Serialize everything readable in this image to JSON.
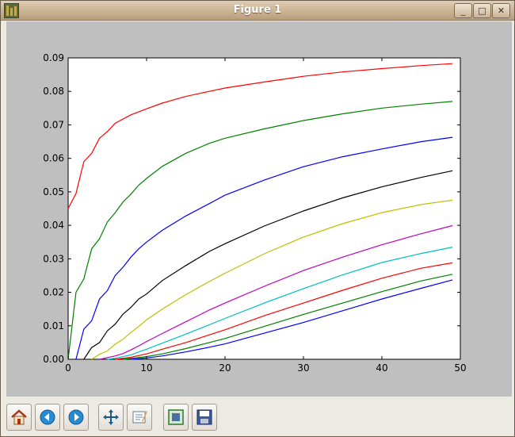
{
  "window": {
    "title": "Figure 1",
    "buttons": {
      "minimize": "_",
      "maximize": "□",
      "close": "✕"
    }
  },
  "toolbar": {
    "buttons": [
      {
        "name": "home-button",
        "icon": "home-icon"
      },
      {
        "name": "back-button",
        "icon": "arrow-left-icon"
      },
      {
        "name": "forward-button",
        "icon": "arrow-right-icon"
      },
      {
        "name": "pan-button",
        "icon": "move-arrows-icon"
      },
      {
        "name": "zoom-button",
        "icon": "zoom-rect-icon"
      },
      {
        "name": "subplots-button",
        "icon": "subplots-icon"
      },
      {
        "name": "save-button",
        "icon": "floppy-disk-icon"
      }
    ]
  },
  "chart_data": {
    "type": "line",
    "title": "",
    "xlabel": "",
    "ylabel": "",
    "xlim": [
      0,
      50
    ],
    "ylim": [
      0,
      0.09
    ],
    "xticks": [
      0,
      10,
      20,
      30,
      40,
      50
    ],
    "xtick_labels": [
      "0",
      "10",
      "20",
      "30",
      "40",
      "50"
    ],
    "yticks": [
      0,
      0.01,
      0.02,
      0.03,
      0.04,
      0.05,
      0.06,
      0.07,
      0.08,
      0.09
    ],
    "ytick_labels": [
      "0.00",
      "0.01",
      "0.02",
      "0.03",
      "0.04",
      "0.05",
      "0.06",
      "0.07",
      "0.08",
      "0.09"
    ],
    "grid": false,
    "legend": "none",
    "series": [
      {
        "color": "#ff0000",
        "x": [
          0,
          1,
          2,
          3,
          4,
          5,
          6,
          8,
          10,
          12,
          15,
          18,
          20,
          25,
          30,
          35,
          40,
          45,
          49
        ],
        "y": [
          0.045,
          0.0495,
          0.059,
          0.0615,
          0.066,
          0.068,
          0.0705,
          0.073,
          0.0748,
          0.0765,
          0.0785,
          0.08,
          0.081,
          0.0828,
          0.0845,
          0.0858,
          0.0868,
          0.0877,
          0.0883
        ]
      },
      {
        "color": "#008000",
        "x": [
          0,
          1,
          2,
          3,
          4,
          5,
          6,
          7,
          8,
          9,
          10,
          12,
          15,
          18,
          20,
          25,
          30,
          35,
          40,
          45,
          49
        ],
        "y": [
          0,
          0.02,
          0.024,
          0.033,
          0.036,
          0.041,
          0.0438,
          0.047,
          0.0493,
          0.052,
          0.054,
          0.0576,
          0.0615,
          0.0645,
          0.066,
          0.0688,
          0.0713,
          0.0733,
          0.075,
          0.0762,
          0.077
        ]
      },
      {
        "color": "#0000ff",
        "x": [
          1,
          2,
          3,
          4,
          5,
          6,
          7,
          8,
          9,
          10,
          12,
          15,
          18,
          20,
          25,
          30,
          35,
          40,
          45,
          49
        ],
        "y": [
          0,
          0.009,
          0.0115,
          0.018,
          0.0205,
          0.025,
          0.0275,
          0.0305,
          0.033,
          0.035,
          0.0385,
          0.0428,
          0.0465,
          0.049,
          0.0535,
          0.0575,
          0.0605,
          0.0628,
          0.065,
          0.0663
        ]
      },
      {
        "color": "#000000",
        "x": [
          2,
          3,
          4,
          5,
          6,
          7,
          8,
          9,
          10,
          12,
          15,
          18,
          20,
          25,
          30,
          35,
          40,
          45,
          49
        ],
        "y": [
          0,
          0.0035,
          0.005,
          0.0085,
          0.0105,
          0.0135,
          0.0155,
          0.018,
          0.0195,
          0.0235,
          0.028,
          0.0322,
          0.0345,
          0.0398,
          0.0443,
          0.0482,
          0.0515,
          0.0543,
          0.0563
        ]
      },
      {
        "color": "#bfbf00",
        "x": [
          3,
          4,
          5,
          6,
          7,
          8,
          9,
          10,
          12,
          15,
          18,
          20,
          25,
          30,
          35,
          40,
          45,
          49
        ],
        "y": [
          0,
          0.0015,
          0.0025,
          0.0045,
          0.006,
          0.008,
          0.0098,
          0.0118,
          0.015,
          0.0193,
          0.0232,
          0.0257,
          0.0315,
          0.0365,
          0.0405,
          0.0438,
          0.0462,
          0.0475
        ]
      },
      {
        "color": "#bf00bf",
        "x": [
          4,
          5,
          6,
          7,
          8,
          9,
          10,
          12,
          15,
          18,
          20,
          25,
          30,
          35,
          40,
          45,
          49
        ],
        "y": [
          0,
          0.0005,
          0.001,
          0.0017,
          0.0028,
          0.004,
          0.0053,
          0.0077,
          0.0112,
          0.0147,
          0.0168,
          0.0218,
          0.0265,
          0.0305,
          0.0342,
          0.0375,
          0.0399
        ]
      },
      {
        "color": "#00bfbf",
        "x": [
          5,
          6,
          7,
          8,
          9,
          10,
          12,
          15,
          18,
          20,
          25,
          30,
          35,
          40,
          45,
          49
        ],
        "y": [
          0,
          0.0003,
          0.0008,
          0.0013,
          0.0022,
          0.003,
          0.0048,
          0.0075,
          0.0103,
          0.0122,
          0.0168,
          0.0211,
          0.0252,
          0.0289,
          0.0316,
          0.0335
        ]
      },
      {
        "color": "#ff0000",
        "x": [
          6,
          8,
          10,
          12,
          15,
          18,
          20,
          25,
          30,
          35,
          40,
          45,
          49
        ],
        "y": [
          0,
          0.0006,
          0.0016,
          0.003,
          0.005,
          0.0073,
          0.0088,
          0.013,
          0.0168,
          0.0206,
          0.0242,
          0.0272,
          0.0288
        ]
      },
      {
        "color": "#008000",
        "x": [
          7,
          10,
          12,
          15,
          18,
          20,
          25,
          30,
          35,
          40,
          45,
          49
        ],
        "y": [
          0,
          0.0008,
          0.0016,
          0.0032,
          0.005,
          0.0062,
          0.0098,
          0.0134,
          0.0168,
          0.0202,
          0.0234,
          0.0254
        ]
      },
      {
        "color": "#0000ff",
        "x": [
          8,
          10,
          12,
          15,
          18,
          20,
          25,
          30,
          35,
          40,
          45,
          49
        ],
        "y": [
          0,
          0.0004,
          0.001,
          0.0022,
          0.0036,
          0.0046,
          0.0078,
          0.011,
          0.0145,
          0.018,
          0.0212,
          0.0237
        ]
      }
    ]
  }
}
